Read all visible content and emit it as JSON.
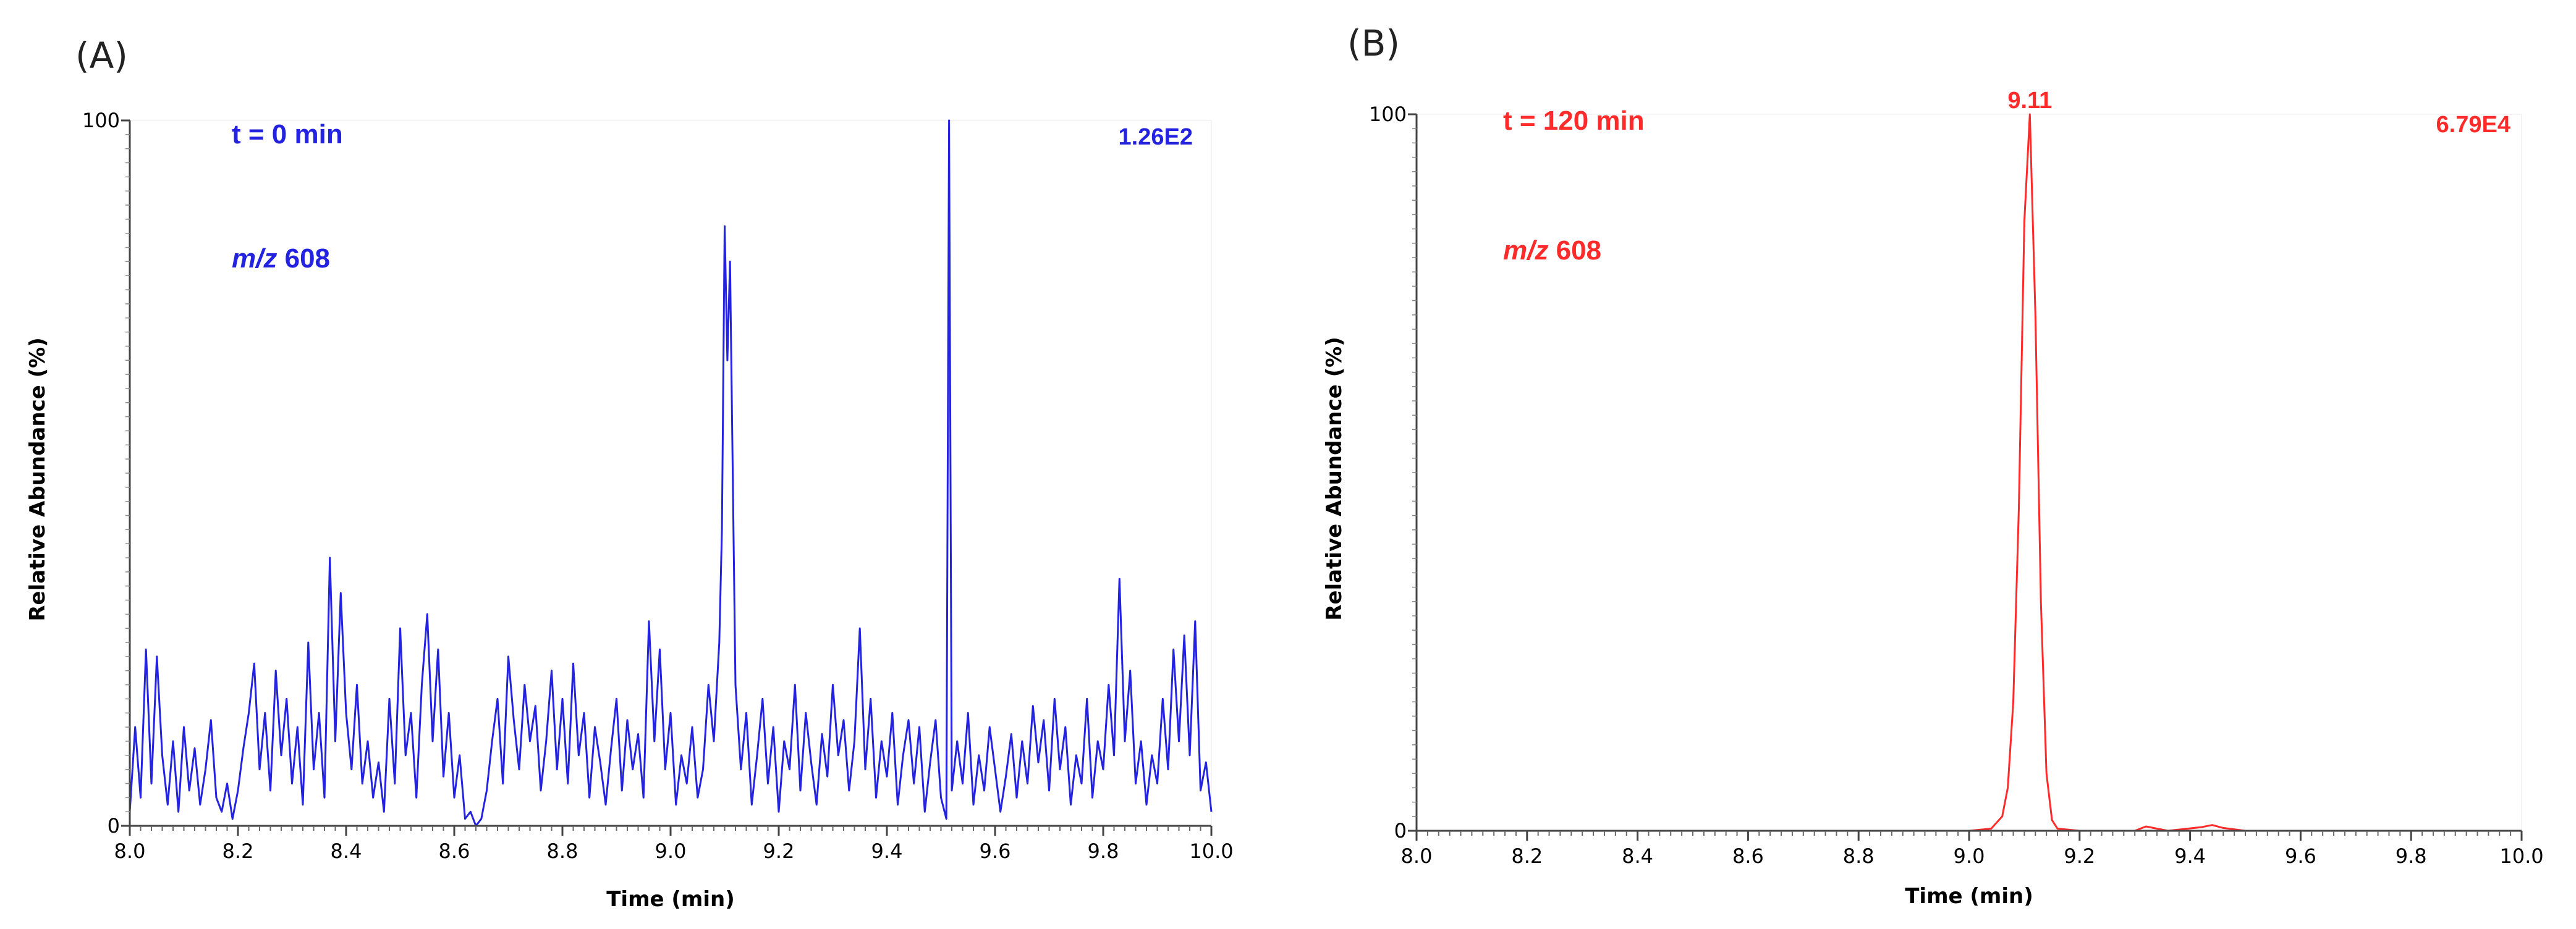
{
  "chart_data": [
    {
      "type": "line",
      "panel_label": "(A)",
      "color": "#2424e0",
      "time_label": "t = 0 min",
      "mz_prefix": "m/z",
      "mz_value": "608",
      "intensity_label": "1.26E2",
      "peak_label": "",
      "xlabel": "Time (min)",
      "ylabel": "Relative Abundance (%)",
      "xlim": [
        8.0,
        10.0
      ],
      "ylim": [
        0,
        100
      ],
      "xticks": [
        "8.0",
        "8.2",
        "8.4",
        "8.6",
        "8.8",
        "9.0",
        "9.2",
        "9.4",
        "9.6",
        "9.8",
        "10.0"
      ],
      "yticks": [
        "0",
        "100"
      ],
      "series": [
        {
          "points": [
            [
              8.0,
              2
            ],
            [
              8.01,
              14
            ],
            [
              8.02,
              4
            ],
            [
              8.03,
              25
            ],
            [
              8.04,
              6
            ],
            [
              8.05,
              24
            ],
            [
              8.06,
              10
            ],
            [
              8.07,
              3
            ],
            [
              8.08,
              12
            ],
            [
              8.09,
              2
            ],
            [
              8.1,
              14
            ],
            [
              8.11,
              5
            ],
            [
              8.12,
              11
            ],
            [
              8.13,
              3
            ],
            [
              8.14,
              8
            ],
            [
              8.15,
              15
            ],
            [
              8.16,
              4
            ],
            [
              8.17,
              2
            ],
            [
              8.18,
              6
            ],
            [
              8.19,
              1
            ],
            [
              8.2,
              5
            ],
            [
              8.21,
              11
            ],
            [
              8.22,
              16
            ],
            [
              8.23,
              23
            ],
            [
              8.24,
              8
            ],
            [
              8.25,
              16
            ],
            [
              8.26,
              5
            ],
            [
              8.27,
              22
            ],
            [
              8.28,
              10
            ],
            [
              8.29,
              18
            ],
            [
              8.3,
              6
            ],
            [
              8.31,
              14
            ],
            [
              8.32,
              3
            ],
            [
              8.33,
              26
            ],
            [
              8.34,
              8
            ],
            [
              8.35,
              16
            ],
            [
              8.36,
              4
            ],
            [
              8.37,
              38
            ],
            [
              8.38,
              12
            ],
            [
              8.39,
              33
            ],
            [
              8.4,
              16
            ],
            [
              8.41,
              8
            ],
            [
              8.42,
              20
            ],
            [
              8.43,
              6
            ],
            [
              8.44,
              12
            ],
            [
              8.45,
              4
            ],
            [
              8.46,
              9
            ],
            [
              8.47,
              2
            ],
            [
              8.48,
              18
            ],
            [
              8.49,
              6
            ],
            [
              8.5,
              28
            ],
            [
              8.51,
              10
            ],
            [
              8.52,
              16
            ],
            [
              8.53,
              4
            ],
            [
              8.54,
              20
            ],
            [
              8.55,
              30
            ],
            [
              8.56,
              12
            ],
            [
              8.57,
              25
            ],
            [
              8.58,
              7
            ],
            [
              8.59,
              16
            ],
            [
              8.6,
              4
            ],
            [
              8.61,
              10
            ],
            [
              8.62,
              1
            ],
            [
              8.63,
              2
            ],
            [
              8.64,
              0
            ],
            [
              8.65,
              1
            ],
            [
              8.66,
              5
            ],
            [
              8.67,
              12
            ],
            [
              8.68,
              18
            ],
            [
              8.69,
              6
            ],
            [
              8.7,
              24
            ],
            [
              8.71,
              15
            ],
            [
              8.72,
              8
            ],
            [
              8.73,
              20
            ],
            [
              8.74,
              12
            ],
            [
              8.75,
              17
            ],
            [
              8.76,
              5
            ],
            [
              8.77,
              12
            ],
            [
              8.78,
              22
            ],
            [
              8.79,
              8
            ],
            [
              8.8,
              18
            ],
            [
              8.81,
              6
            ],
            [
              8.82,
              23
            ],
            [
              8.83,
              10
            ],
            [
              8.84,
              16
            ],
            [
              8.85,
              4
            ],
            [
              8.86,
              14
            ],
            [
              8.87,
              9
            ],
            [
              8.88,
              3
            ],
            [
              8.89,
              11
            ],
            [
              8.9,
              18
            ],
            [
              8.91,
              5
            ],
            [
              8.92,
              15
            ],
            [
              8.93,
              8
            ],
            [
              8.94,
              13
            ],
            [
              8.95,
              4
            ],
            [
              8.96,
              29
            ],
            [
              8.97,
              12
            ],
            [
              8.98,
              25
            ],
            [
              8.99,
              8
            ],
            [
              9.0,
              16
            ],
            [
              9.01,
              3
            ],
            [
              9.02,
              10
            ],
            [
              9.03,
              6
            ],
            [
              9.04,
              14
            ],
            [
              9.05,
              4
            ],
            [
              9.06,
              8
            ],
            [
              9.07,
              20
            ],
            [
              9.08,
              12
            ],
            [
              9.09,
              26
            ],
            [
              9.095,
              42
            ],
            [
              9.1,
              85
            ],
            [
              9.105,
              66
            ],
            [
              9.11,
              80
            ],
            [
              9.115,
              50
            ],
            [
              9.12,
              20
            ],
            [
              9.13,
              8
            ],
            [
              9.14,
              16
            ],
            [
              9.15,
              3
            ],
            [
              9.16,
              10
            ],
            [
              9.17,
              18
            ],
            [
              9.18,
              6
            ],
            [
              9.19,
              14
            ],
            [
              9.2,
              2
            ],
            [
              9.21,
              12
            ],
            [
              9.22,
              8
            ],
            [
              9.23,
              20
            ],
            [
              9.24,
              5
            ],
            [
              9.25,
              16
            ],
            [
              9.26,
              9
            ],
            [
              9.27,
              3
            ],
            [
              9.28,
              13
            ],
            [
              9.29,
              7
            ],
            [
              9.3,
              20
            ],
            [
              9.31,
              10
            ],
            [
              9.32,
              15
            ],
            [
              9.33,
              5
            ],
            [
              9.34,
              12
            ],
            [
              9.35,
              28
            ],
            [
              9.36,
              8
            ],
            [
              9.37,
              18
            ],
            [
              9.38,
              4
            ],
            [
              9.39,
              12
            ],
            [
              9.4,
              7
            ],
            [
              9.41,
              16
            ],
            [
              9.42,
              3
            ],
            [
              9.43,
              10
            ],
            [
              9.44,
              15
            ],
            [
              9.45,
              6
            ],
            [
              9.46,
              14
            ],
            [
              9.47,
              2
            ],
            [
              9.48,
              9
            ],
            [
              9.49,
              15
            ],
            [
              9.5,
              4
            ],
            [
              9.51,
              1
            ],
            [
              9.515,
              100
            ],
            [
              9.52,
              5
            ],
            [
              9.53,
              12
            ],
            [
              9.54,
              6
            ],
            [
              9.55,
              16
            ],
            [
              9.56,
              3
            ],
            [
              9.57,
              10
            ],
            [
              9.58,
              5
            ],
            [
              9.59,
              14
            ],
            [
              9.6,
              8
            ],
            [
              9.61,
              2
            ],
            [
              9.62,
              7
            ],
            [
              9.63,
              13
            ],
            [
              9.64,
              4
            ],
            [
              9.65,
              12
            ],
            [
              9.66,
              6
            ],
            [
              9.67,
              17
            ],
            [
              9.68,
              9
            ],
            [
              9.69,
              15
            ],
            [
              9.7,
              5
            ],
            [
              9.71,
              18
            ],
            [
              9.72,
              8
            ],
            [
              9.73,
              14
            ],
            [
              9.74,
              3
            ],
            [
              9.75,
              10
            ],
            [
              9.76,
              6
            ],
            [
              9.77,
              18
            ],
            [
              9.78,
              4
            ],
            [
              9.79,
              12
            ],
            [
              9.8,
              8
            ],
            [
              9.81,
              20
            ],
            [
              9.82,
              10
            ],
            [
              9.83,
              35
            ],
            [
              9.84,
              12
            ],
            [
              9.85,
              22
            ],
            [
              9.86,
              6
            ],
            [
              9.87,
              12
            ],
            [
              9.88,
              3
            ],
            [
              9.89,
              10
            ],
            [
              9.9,
              6
            ],
            [
              9.91,
              18
            ],
            [
              9.92,
              8
            ],
            [
              9.93,
              25
            ],
            [
              9.94,
              12
            ],
            [
              9.95,
              27
            ],
            [
              9.96,
              10
            ],
            [
              9.97,
              29
            ],
            [
              9.98,
              5
            ],
            [
              9.99,
              9
            ],
            [
              10.0,
              2
            ]
          ]
        }
      ]
    },
    {
      "type": "line",
      "panel_label": "(B)",
      "color": "#ff2b2b",
      "time_label": "t = 120 min",
      "mz_prefix": "m/z",
      "mz_value": "608",
      "intensity_label": "6.79E4",
      "peak_label": "9.11",
      "peak_x": 9.11,
      "xlabel": "Time (min)",
      "ylabel": "Relative Abundance (%)",
      "xlim": [
        8.0,
        10.0
      ],
      "ylim": [
        0,
        100
      ],
      "xticks": [
        "8.0",
        "8.2",
        "8.4",
        "8.6",
        "8.8",
        "9.0",
        "9.2",
        "9.4",
        "9.6",
        "9.8",
        "10.0"
      ],
      "yticks": [
        "0",
        "100"
      ],
      "series": [
        {
          "points": [
            [
              8.0,
              0
            ],
            [
              8.5,
              0
            ],
            [
              9.0,
              0
            ],
            [
              9.04,
              0.3
            ],
            [
              9.06,
              2
            ],
            [
              9.07,
              6
            ],
            [
              9.08,
              18
            ],
            [
              9.09,
              45
            ],
            [
              9.1,
              85
            ],
            [
              9.11,
              100
            ],
            [
              9.12,
              72
            ],
            [
              9.13,
              32
            ],
            [
              9.14,
              8
            ],
            [
              9.15,
              1.5
            ],
            [
              9.16,
              0.3
            ],
            [
              9.2,
              0
            ],
            [
              9.3,
              0
            ],
            [
              9.32,
              0.6
            ],
            [
              9.34,
              0.3
            ],
            [
              9.36,
              0
            ],
            [
              9.42,
              0.5
            ],
            [
              9.44,
              0.8
            ],
            [
              9.46,
              0.4
            ],
            [
              9.5,
              0
            ],
            [
              10.0,
              0
            ]
          ]
        }
      ]
    }
  ]
}
